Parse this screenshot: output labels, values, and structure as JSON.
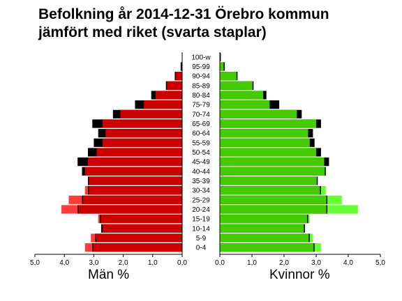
{
  "chart_data": {
    "type": "bar",
    "title_lines": [
      "Befolkning år 2014-12-31 Örebro kommun",
      "jämfört med riket (svarta staplar)"
    ],
    "categories": [
      "0-4",
      "5-9",
      "10-14",
      "15-19",
      "20-24",
      "25-29",
      "30-34",
      "35-39",
      "40-44",
      "45-49",
      "50-54",
      "55-59",
      "60-64",
      "65-69",
      "70-74",
      "75-79",
      "80-84",
      "85-89",
      "90-94",
      "95-99",
      "100-w"
    ],
    "xlim": [
      0,
      5
    ],
    "x_ticks": [
      "0,0",
      "1,0",
      "2,0",
      "3,0",
      "4,0",
      "5,0"
    ],
    "male_label": "Män %",
    "female_label": "Kvinnor %",
    "series": [
      {
        "name": "Män Örebro kommun",
        "side": "left",
        "color": "#ff3b3b",
        "values": [
          3.3,
          3.1,
          2.7,
          2.85,
          4.1,
          3.85,
          3.3,
          3.2,
          3.3,
          3.2,
          2.9,
          2.7,
          2.6,
          2.7,
          2.1,
          1.3,
          0.9,
          0.55,
          0.25,
          0.05,
          0.01
        ]
      },
      {
        "name": "Män riket",
        "side": "left",
        "color": "#000000",
        "values": [
          3.05,
          2.95,
          2.75,
          2.8,
          3.55,
          3.4,
          3.2,
          3.2,
          3.4,
          3.55,
          3.2,
          3.0,
          2.85,
          3.05,
          2.35,
          1.6,
          1.05,
          0.55,
          0.25,
          0.05,
          0.01
        ]
      },
      {
        "name": "Kvinnor Örebro kommun",
        "side": "right",
        "color": "#66ff33",
        "values": [
          3.15,
          2.9,
          2.65,
          2.8,
          4.3,
          3.8,
          3.3,
          3.05,
          3.3,
          3.25,
          3.0,
          2.8,
          2.75,
          3.0,
          2.4,
          1.55,
          1.35,
          1.05,
          0.55,
          0.15,
          0.03
        ]
      },
      {
        "name": "Kvinnor riket",
        "side": "right",
        "color": "#000000",
        "values": [
          2.95,
          2.8,
          2.65,
          2.75,
          3.35,
          3.35,
          3.15,
          3.05,
          3.3,
          3.4,
          3.15,
          2.95,
          2.9,
          3.15,
          2.55,
          1.85,
          1.45,
          1.05,
          0.55,
          0.15,
          0.03
        ]
      }
    ]
  }
}
